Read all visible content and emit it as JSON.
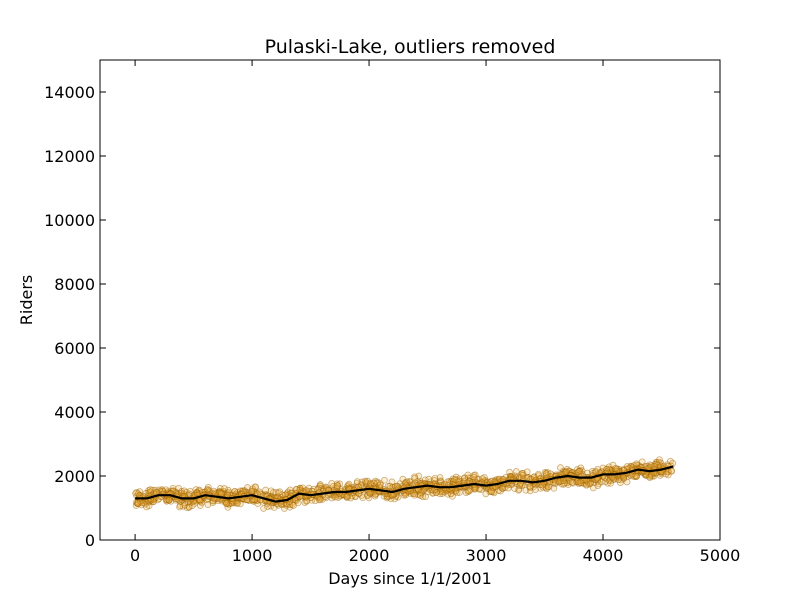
{
  "chart_data": {
    "type": "scatter",
    "title": "Pulaski-Lake, outliers removed",
    "xlabel": "Days since 1/1/2001",
    "ylabel": "Riders",
    "xlim": [
      -300,
      5000
    ],
    "ylim": [
      0,
      15000
    ],
    "x_ticks": [
      0,
      1000,
      2000,
      3000,
      4000,
      5000
    ],
    "y_ticks": [
      0,
      2000,
      4000,
      6000,
      8000,
      10000,
      12000,
      14000
    ],
    "x_tick_labels": [
      "0",
      "1000",
      "2000",
      "3000",
      "4000",
      "5000"
    ],
    "y_tick_labels": [
      "0",
      "2000",
      "4000",
      "6000",
      "8000",
      "10000",
      "12000",
      "14000"
    ],
    "grid": false,
    "colors": {
      "points_fill": "#f5b342",
      "points_edge": "#9a6200",
      "trend_line": "#000000",
      "axes": "#000000"
    },
    "series": [
      {
        "type": "scatter",
        "x_range": [
          0,
          4600
        ],
        "point_count": 1600
      },
      {
        "type": "line",
        "x": [
          0,
          100,
          200,
          300,
          400,
          500,
          600,
          700,
          800,
          900,
          1000,
          1100,
          1200,
          1300,
          1400,
          1500,
          1600,
          1700,
          1800,
          1900,
          2000,
          2100,
          2200,
          2300,
          2400,
          2500,
          2600,
          2700,
          2800,
          2900,
          3000,
          3100,
          3200,
          3300,
          3400,
          3500,
          3600,
          3700,
          3800,
          3900,
          4000,
          4100,
          4200,
          4300,
          4400,
          4500,
          4600
        ],
        "y": [
          1300,
          1300,
          1400,
          1400,
          1300,
          1300,
          1400,
          1350,
          1300,
          1350,
          1400,
          1300,
          1200,
          1250,
          1450,
          1400,
          1450,
          1500,
          1500,
          1550,
          1600,
          1550,
          1500,
          1600,
          1650,
          1700,
          1650,
          1650,
          1700,
          1750,
          1700,
          1750,
          1850,
          1850,
          1800,
          1850,
          1950,
          2000,
          1950,
          1950,
          2050,
          2050,
          2100,
          2200,
          2150,
          2200,
          2300
        ]
      }
    ]
  }
}
